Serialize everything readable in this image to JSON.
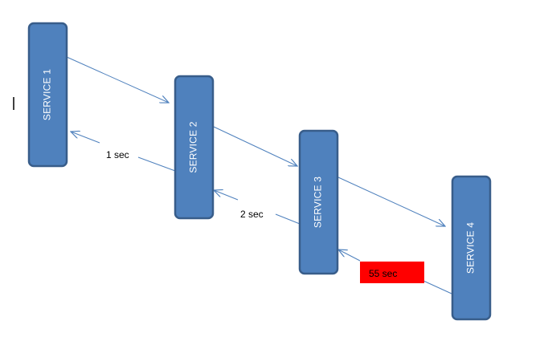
{
  "diagram": {
    "services": [
      {
        "label": "SERVICE 1"
      },
      {
        "label": "SERVICE 2"
      },
      {
        "label": "SERVICE 3"
      },
      {
        "label": "SERVICE 4"
      }
    ],
    "responses": [
      {
        "label": "1 sec"
      },
      {
        "label": "2 sec"
      },
      {
        "label": "55 sec",
        "highlighted": true
      }
    ],
    "colors": {
      "service_fill": "#4F81BD",
      "service_stroke": "#385D8A",
      "arrow": "#4F81BD",
      "highlight": "#FF0000"
    }
  }
}
